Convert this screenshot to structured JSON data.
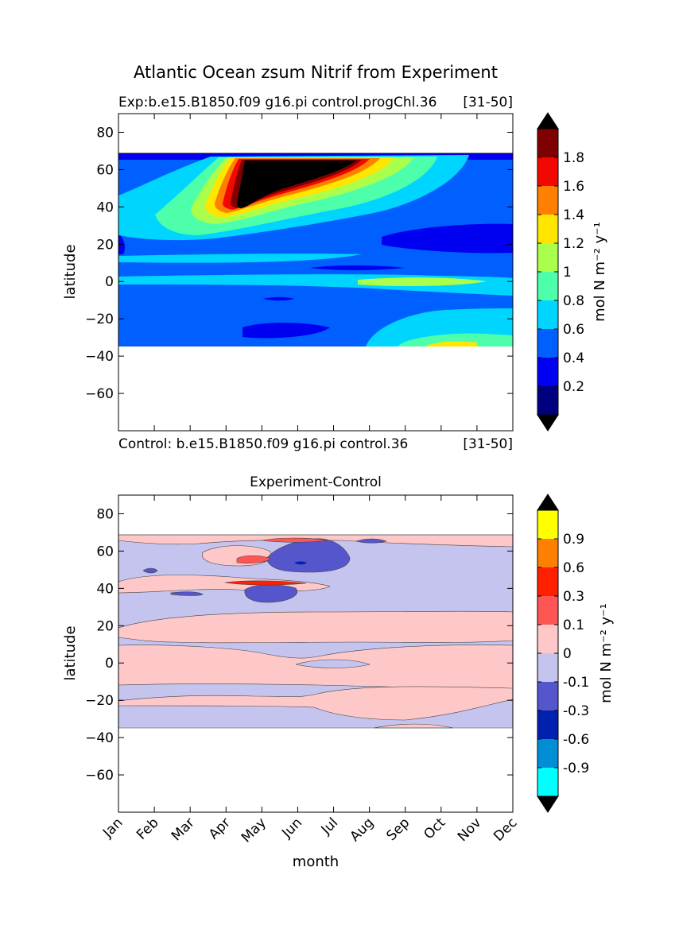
{
  "figure_title": "Atlantic Ocean zsum Nitrif from Experiment",
  "chart_data": [
    {
      "type": "heatmap",
      "title_left": "Exp:b.e15.B1850.f09 g16.pi control.progChl.36",
      "title_right": "[31-50]",
      "bottom_left": "Control: b.e15.B1850.f09 g16.pi control.36",
      "bottom_right": "[31-50]",
      "ylabel": "latitude",
      "xlabel": "",
      "ylim": [
        -80,
        90
      ],
      "yticks": [
        80,
        60,
        40,
        20,
        0,
        -20,
        -40,
        -60
      ],
      "colorbar": {
        "label": "mol N m⁻² y⁻¹",
        "levels": [
          "0.2",
          "0.4",
          "0.6",
          "0.8",
          "1",
          "1.2",
          "1.4",
          "1.6",
          "1.8"
        ],
        "colors": [
          "#00007f",
          "#0000f1",
          "#0060ff",
          "#00d5ff",
          "#4dffaa",
          "#aaff4d",
          "#ffe600",
          "#ff8000",
          "#f10800",
          "#7f0000"
        ],
        "under_color": "#000000",
        "over_color": "#000000"
      },
      "data_coverage_lat": [
        -34,
        69
      ]
    },
    {
      "type": "heatmap",
      "title": "Experiment-Control",
      "ylabel": "latitude",
      "xlabel": "month",
      "ylim": [
        -80,
        90
      ],
      "yticks": [
        80,
        60,
        40,
        20,
        0,
        -20,
        -40,
        -60
      ],
      "xticks": [
        "Jan",
        "Feb",
        "Mar",
        "Apr",
        "May",
        "Jun",
        "Jul",
        "Aug",
        "Sep",
        "Oct",
        "Nov",
        "Dec"
      ],
      "colorbar": {
        "label": "mol N m⁻² y⁻¹",
        "levels": [
          "0.9",
          "0.6",
          "0.3",
          "0.1",
          "0",
          "-0.1",
          "-0.3",
          "-0.6",
          "-0.9"
        ],
        "colors": [
          "#00ffff",
          "#008fd4",
          "#0020b0",
          "#5555cc",
          "#c4c4ee",
          "#ffc8c8",
          "#ff5555",
          "#ff2000",
          "#ff8000",
          "#ffff00"
        ],
        "under_color": "#000000",
        "over_color": "#000000"
      },
      "data_coverage_lat": [
        -34,
        69
      ]
    }
  ]
}
